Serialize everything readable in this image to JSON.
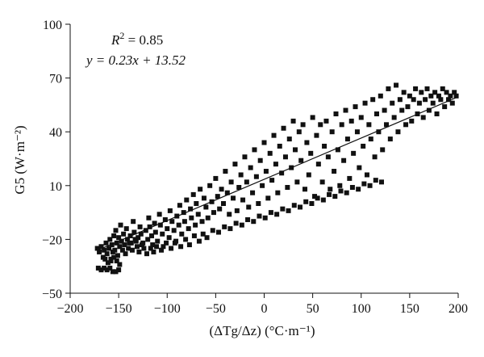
{
  "chart_data": {
    "type": "scatter",
    "xlabel": "(ΔTg/Δz) (°C·m⁻¹)",
    "ylabel": "G5 (W·m⁻²)",
    "xlim": [
      -200,
      200
    ],
    "ylim": [
      -50,
      100
    ],
    "xticks": [
      -200,
      -150,
      -100,
      -50,
      0,
      50,
      100,
      150,
      200
    ],
    "yticks": [
      -50,
      -20,
      10,
      40,
      70,
      100
    ],
    "grid": false,
    "marker": "square",
    "marker_color": "#111111",
    "annotations": {
      "r2_label": "R",
      "r2_sup": "2",
      "r2_value": " = 0.85",
      "equation": "y = 0.23x + 13.52"
    },
    "fit_line": {
      "slope": 0.23,
      "intercept": 13.52,
      "x_range": [
        -170,
        200
      ]
    },
    "points": [
      [
        -172,
        -25
      ],
      [
        -170,
        -27
      ],
      [
        -168,
        -24
      ],
      [
        -166,
        -30
      ],
      [
        -165,
        -26
      ],
      [
        -163,
        -22
      ],
      [
        -162,
        -28
      ],
      [
        -160,
        -25
      ],
      [
        -159,
        -20
      ],
      [
        -158,
        -31
      ],
      [
        -157,
        -23
      ],
      [
        -156,
        -27
      ],
      [
        -155,
        -18
      ],
      [
        -154,
        -26
      ],
      [
        -153,
        -15
      ],
      [
        -152,
        -22
      ],
      [
        -151,
        -29
      ],
      [
        -150,
        -19
      ],
      [
        -149,
        -24
      ],
      [
        -148,
        -12
      ],
      [
        -147,
        -21
      ],
      [
        -146,
        -26
      ],
      [
        -145,
        -17
      ],
      [
        -144,
        -23
      ],
      [
        -143,
        -28
      ],
      [
        -142,
        -14
      ],
      [
        -141,
        -20
      ],
      [
        -140,
        -25
      ],
      [
        -138,
        -18
      ],
      [
        -137,
        -22
      ],
      [
        -135,
        -10
      ],
      [
        -134,
        -16
      ],
      [
        -132,
        -21
      ],
      [
        -131,
        -24
      ],
      [
        -130,
        -19
      ],
      [
        -128,
        -13
      ],
      [
        -127,
        -17
      ],
      [
        -125,
        -22
      ],
      [
        -124,
        -25
      ],
      [
        -122,
        -15
      ],
      [
        -120,
        -20
      ],
      [
        -119,
        -8
      ],
      [
        -118,
        -13
      ],
      [
        -116,
        -18
      ],
      [
        -115,
        -23
      ],
      [
        -113,
        -11
      ],
      [
        -112,
        -16
      ],
      [
        -110,
        -21
      ],
      [
        -108,
        -6
      ],
      [
        -107,
        -12
      ],
      [
        -105,
        -17
      ],
      [
        -104,
        -24
      ],
      [
        -102,
        -9
      ],
      [
        -100,
        -14
      ],
      [
        -98,
        -19
      ],
      [
        -97,
        -4
      ],
      [
        -95,
        -10
      ],
      [
        -93,
        -15
      ],
      [
        -92,
        -22
      ],
      [
        -90,
        -7
      ],
      [
        -88,
        -12
      ],
      [
        -87,
        -1
      ],
      [
        -85,
        -17
      ],
      [
        -83,
        -5
      ],
      [
        -82,
        -10
      ],
      [
        -80,
        2
      ],
      [
        -78,
        -14
      ],
      [
        -76,
        -3
      ],
      [
        -75,
        -8
      ],
      [
        -73,
        5
      ],
      [
        -71,
        -12
      ],
      [
        -70,
        0
      ],
      [
        -68,
        -6
      ],
      [
        -66,
        8
      ],
      [
        -64,
        -10
      ],
      [
        -62,
        3
      ],
      [
        -60,
        -2
      ],
      [
        -58,
        -8
      ],
      [
        -56,
        10
      ],
      [
        -54,
        1
      ],
      [
        -52,
        -5
      ],
      [
        -50,
        14
      ],
      [
        -48,
        4
      ],
      [
        -46,
        -3
      ],
      [
        -44,
        8
      ],
      [
        -42,
        0
      ],
      [
        -40,
        18
      ],
      [
        -38,
        6
      ],
      [
        -36,
        -6
      ],
      [
        -34,
        12
      ],
      [
        -32,
        3
      ],
      [
        -30,
        22
      ],
      [
        -28,
        -4
      ],
      [
        -26,
        9
      ],
      [
        -24,
        16
      ],
      [
        -22,
        2
      ],
      [
        -20,
        26
      ],
      [
        -18,
        12
      ],
      [
        -16,
        -2
      ],
      [
        -14,
        20
      ],
      [
        -12,
        6
      ],
      [
        -10,
        30
      ],
      [
        -8,
        15
      ],
      [
        -6,
        0
      ],
      [
        -4,
        24
      ],
      [
        -2,
        10
      ],
      [
        0,
        34
      ],
      [
        2,
        18
      ],
      [
        4,
        3
      ],
      [
        6,
        28
      ],
      [
        8,
        13
      ],
      [
        10,
        38
      ],
      [
        12,
        22
      ],
      [
        14,
        6
      ],
      [
        16,
        32
      ],
      [
        18,
        17
      ],
      [
        20,
        42
      ],
      [
        22,
        26
      ],
      [
        24,
        9
      ],
      [
        26,
        36
      ],
      [
        28,
        20
      ],
      [
        30,
        46
      ],
      [
        32,
        30
      ],
      [
        34,
        12
      ],
      [
        36,
        40
      ],
      [
        38,
        24
      ],
      [
        40,
        44
      ],
      [
        42,
        8
      ],
      [
        44,
        34
      ],
      [
        46,
        16
      ],
      [
        48,
        28
      ],
      [
        50,
        48
      ],
      [
        52,
        4
      ],
      [
        54,
        38
      ],
      [
        56,
        22
      ],
      [
        58,
        44
      ],
      [
        60,
        12
      ],
      [
        62,
        32
      ],
      [
        64,
        46
      ],
      [
        66,
        26
      ],
      [
        68,
        8
      ],
      [
        70,
        40
      ],
      [
        72,
        18
      ],
      [
        74,
        50
      ],
      [
        76,
        30
      ],
      [
        78,
        10
      ],
      [
        80,
        44
      ],
      [
        82,
        24
      ],
      [
        84,
        52
      ],
      [
        86,
        36
      ],
      [
        88,
        14
      ],
      [
        90,
        46
      ],
      [
        92,
        28
      ],
      [
        94,
        54
      ],
      [
        96,
        40
      ],
      [
        98,
        20
      ],
      [
        100,
        48
      ],
      [
        102,
        32
      ],
      [
        104,
        56
      ],
      [
        106,
        16
      ],
      [
        108,
        44
      ],
      [
        110,
        36
      ],
      [
        112,
        58
      ],
      [
        114,
        26
      ],
      [
        116,
        50
      ],
      [
        118,
        40
      ],
      [
        120,
        60
      ],
      [
        122,
        30
      ],
      [
        124,
        52
      ],
      [
        126,
        44
      ],
      [
        128,
        64
      ],
      [
        130,
        36
      ],
      [
        132,
        56
      ],
      [
        134,
        48
      ],
      [
        136,
        66
      ],
      [
        138,
        40
      ],
      [
        140,
        58
      ],
      [
        142,
        52
      ],
      [
        144,
        62
      ],
      [
        146,
        44
      ],
      [
        148,
        54
      ],
      [
        150,
        60
      ],
      [
        152,
        46
      ],
      [
        154,
        58
      ],
      [
        156,
        64
      ],
      [
        158,
        50
      ],
      [
        160,
        56
      ],
      [
        162,
        62
      ],
      [
        164,
        48
      ],
      [
        166,
        58
      ],
      [
        168,
        64
      ],
      [
        170,
        52
      ],
      [
        172,
        60
      ],
      [
        174,
        56
      ],
      [
        176,
        62
      ],
      [
        178,
        50
      ],
      [
        180,
        60
      ],
      [
        182,
        58
      ],
      [
        184,
        64
      ],
      [
        186,
        54
      ],
      [
        188,
        62
      ],
      [
        190,
        58
      ],
      [
        192,
        60
      ],
      [
        194,
        56
      ],
      [
        196,
        62
      ],
      [
        198,
        60
      ],
      [
        -171,
        -36
      ],
      [
        -168,
        -37
      ],
      [
        -165,
        -36
      ],
      [
        -162,
        -37
      ],
      [
        -159,
        -36
      ],
      [
        -156,
        -38
      ],
      [
        -153,
        -38
      ],
      [
        -150,
        -37
      ],
      [
        -164,
        -31
      ],
      [
        -161,
        -33
      ],
      [
        -158,
        -32
      ],
      [
        -155,
        -30
      ],
      [
        -152,
        -32
      ],
      [
        -149,
        -34
      ],
      [
        -139,
        -22
      ],
      [
        -136,
        -26
      ],
      [
        -133,
        -20
      ],
      [
        -129,
        -27
      ],
      [
        -126,
        -23
      ],
      [
        -121,
        -28
      ],
      [
        -117,
        -25
      ],
      [
        -114,
        -27
      ],
      [
        -111,
        -24
      ],
      [
        -106,
        -26
      ],
      [
        -101,
        -22
      ],
      [
        -96,
        -25
      ],
      [
        -91,
        -21
      ],
      [
        -86,
        -24
      ],
      [
        -81,
        -20
      ],
      [
        -77,
        -23
      ],
      [
        -72,
        -18
      ],
      [
        -67,
        -21
      ],
      [
        -63,
        -17
      ],
      [
        -59,
        -19
      ],
      [
        -53,
        -15
      ],
      [
        -47,
        -16
      ],
      [
        -41,
        -13
      ],
      [
        -35,
        -14
      ],
      [
        -29,
        -11
      ],
      [
        -23,
        -12
      ],
      [
        -17,
        -9
      ],
      [
        -11,
        -10
      ],
      [
        -5,
        -7
      ],
      [
        1,
        -8
      ],
      [
        7,
        -5
      ],
      [
        13,
        -6
      ],
      [
        19,
        -3
      ],
      [
        25,
        -4
      ],
      [
        31,
        -1
      ],
      [
        37,
        -2
      ],
      [
        43,
        1
      ],
      [
        49,
        0
      ],
      [
        55,
        3
      ],
      [
        61,
        2
      ],
      [
        67,
        5
      ],
      [
        73,
        4
      ],
      [
        79,
        7
      ],
      [
        85,
        6
      ],
      [
        91,
        9
      ],
      [
        97,
        8
      ],
      [
        103,
        11
      ],
      [
        109,
        10
      ],
      [
        115,
        13
      ],
      [
        121,
        12
      ]
    ]
  }
}
